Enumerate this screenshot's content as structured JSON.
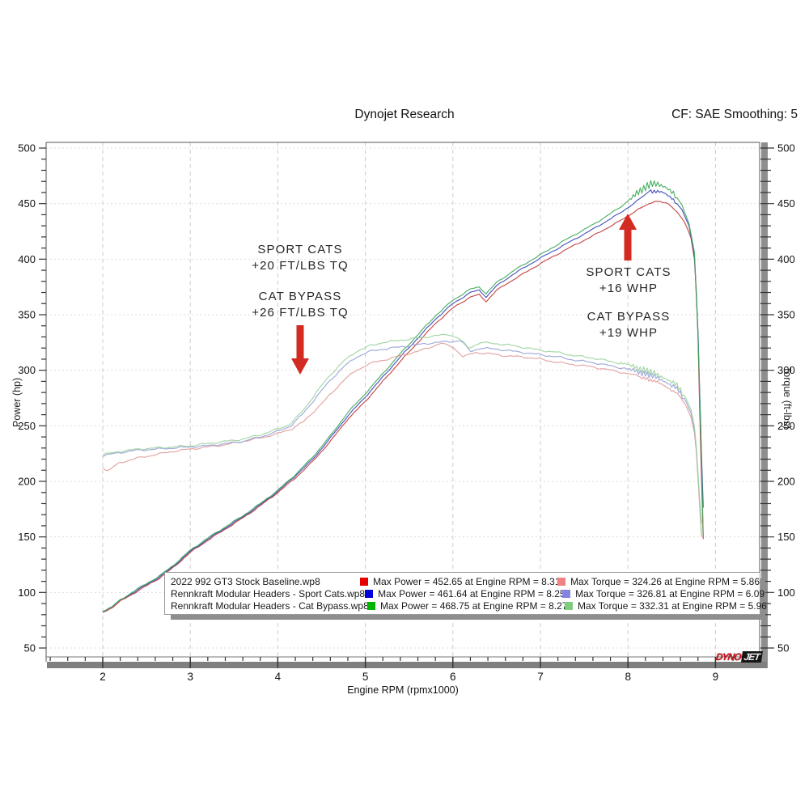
{
  "header": {
    "title": "Dynojet Research",
    "cf_label": "CF: SAE Smoothing: 5"
  },
  "annotations": {
    "left_top": {
      "line1": "SPORT CATS",
      "line2": "+20 FT/LBS TQ"
    },
    "left_bottom": {
      "line1": "CAT BYPASS",
      "line2": "+26 FT/LBS TQ"
    },
    "right_top": {
      "line1": "SPORT CATS",
      "line2": "+16 WHP"
    },
    "right_bottom": {
      "line1": "CAT BYPASS",
      "line2": "+19 WHP"
    },
    "arrow_color": "#d32a22"
  },
  "legend": {
    "rows": [
      {
        "file": "2022 992 GT3 Stock Baseline.wp8",
        "power": "Max Power = 452.65 at Engine RPM = 8.31",
        "torque": "Max Torque = 324.26 at Engine RPM = 5.86",
        "power_color": "#e60000",
        "torque_color": "#ef8383"
      },
      {
        "file": "Rennkraft Modular Headers - Sport Cats.wp8",
        "power": "Max Power = 461.64 at Engine RPM = 8.25",
        "torque": "Max Torque = 326.81 at Engine RPM = 6.09",
        "power_color": "#0000dd",
        "torque_color": "#8383e0"
      },
      {
        "file": "Rennkraft Modular Headers - Cat Bypass.wp8",
        "power": "Max Power = 468.75 at Engine RPM = 8.27",
        "torque": "Max Torque = 332.31 at Engine RPM = 5.96",
        "power_color": "#00b400",
        "torque_color": "#7fcc7f"
      }
    ]
  },
  "logo": {
    "brand_left": "DYNO",
    "brand_right": "JET"
  },
  "chart_data": {
    "type": "line",
    "title": "Dynojet Research",
    "xlabel": "Engine RPM (rpmx1000)",
    "ylabel_left": "Power (hp)",
    "ylabel_right": "Torque (ft-lbs)",
    "x_range": [
      1.35,
      9.52
    ],
    "y_range": [
      41,
      505
    ],
    "x_ticks": [
      2,
      3,
      4,
      5,
      6,
      7,
      8,
      9
    ],
    "y_ticks": [
      50,
      100,
      150,
      200,
      250,
      300,
      350,
      400,
      450,
      500
    ],
    "x_minor_step": 0.2,
    "y_minor_step": 10,
    "grid": true,
    "legend_position": "bottom",
    "series": [
      {
        "key": "power-stock",
        "name": "2022 992 GT3 Stock Baseline.wp8 Power",
        "axis": "power",
        "color": "#c23b3b",
        "noise": 0.6,
        "zigzag": null,
        "max": {
          "value": 452.65,
          "rpm": 8.31
        },
        "points": [
          [
            2,
            82
          ],
          [
            2.1,
            86
          ],
          [
            2.2,
            92
          ],
          [
            2.35,
            99
          ],
          [
            2.5,
            106
          ],
          [
            2.65,
            113
          ],
          [
            2.8,
            122
          ],
          [
            3,
            136
          ],
          [
            3.2,
            147
          ],
          [
            3.4,
            157
          ],
          [
            3.6,
            167
          ],
          [
            3.8,
            178
          ],
          [
            4,
            190
          ],
          [
            4.2,
            203
          ],
          [
            4.4,
            218
          ],
          [
            4.6,
            236
          ],
          [
            4.8,
            256
          ],
          [
            5,
            272
          ],
          [
            5.2,
            290
          ],
          [
            5.4,
            308
          ],
          [
            5.6,
            325
          ],
          [
            5.8,
            342
          ],
          [
            6,
            356
          ],
          [
            6.2,
            366
          ],
          [
            6.3,
            368
          ],
          [
            6.38,
            362
          ],
          [
            6.5,
            372
          ],
          [
            6.7,
            382
          ],
          [
            7,
            396
          ],
          [
            7.3,
            409
          ],
          [
            7.6,
            421
          ],
          [
            7.9,
            434
          ],
          [
            8.1,
            444
          ],
          [
            8.31,
            452.6
          ],
          [
            8.45,
            450
          ],
          [
            8.55,
            444
          ],
          [
            8.65,
            433
          ],
          [
            8.72,
            419
          ],
          [
            8.77,
            395
          ],
          [
            8.8,
            330
          ],
          [
            8.83,
            230
          ],
          [
            8.86,
            148
          ]
        ]
      },
      {
        "key": "power-sport-cats",
        "name": "Rennkraft Modular Headers - Sport Cats.wp8 Power",
        "axis": "power",
        "color": "#3b49b8",
        "noise": 0.6,
        "zigzag": {
          "from": 8.25,
          "to": 8.55,
          "amp": 1.6,
          "freq": 150
        },
        "max": {
          "value": 461.64,
          "rpm": 8.25
        },
        "points": [
          [
            2,
            83
          ],
          [
            2.1,
            87
          ],
          [
            2.2,
            93
          ],
          [
            2.35,
            100
          ],
          [
            2.5,
            107
          ],
          [
            2.65,
            114
          ],
          [
            2.8,
            123
          ],
          [
            3,
            137
          ],
          [
            3.2,
            148
          ],
          [
            3.4,
            158
          ],
          [
            3.6,
            168
          ],
          [
            3.8,
            179
          ],
          [
            4,
            191
          ],
          [
            4.2,
            205
          ],
          [
            4.4,
            220
          ],
          [
            4.6,
            239
          ],
          [
            4.8,
            259
          ],
          [
            5,
            276
          ],
          [
            5.2,
            294
          ],
          [
            5.4,
            312
          ],
          [
            5.6,
            329
          ],
          [
            5.8,
            346
          ],
          [
            6,
            360
          ],
          [
            6.2,
            370
          ],
          [
            6.3,
            372
          ],
          [
            6.38,
            366
          ],
          [
            6.5,
            376
          ],
          [
            6.7,
            387
          ],
          [
            7,
            401
          ],
          [
            7.3,
            414
          ],
          [
            7.6,
            427
          ],
          [
            7.9,
            441
          ],
          [
            8.1,
            452
          ],
          [
            8.25,
            461.6
          ],
          [
            8.4,
            460
          ],
          [
            8.52,
            454
          ],
          [
            8.62,
            444
          ],
          [
            8.7,
            429
          ],
          [
            8.76,
            403
          ],
          [
            8.8,
            335
          ],
          [
            8.84,
            225
          ],
          [
            8.87,
            152
          ]
        ]
      },
      {
        "key": "power-cat-bypass",
        "name": "Rennkraft Modular Headers - Cat Bypass.wp8 Power",
        "axis": "power",
        "color": "#3fa85a",
        "noise": 0.6,
        "zigzag": {
          "from": 8.0,
          "to": 8.55,
          "amp": 3.2,
          "freq": 150
        },
        "max": {
          "value": 468.75,
          "rpm": 8.27
        },
        "points": [
          [
            2,
            83
          ],
          [
            2.1,
            87
          ],
          [
            2.2,
            93
          ],
          [
            2.35,
            101
          ],
          [
            2.5,
            108
          ],
          [
            2.65,
            115
          ],
          [
            2.8,
            124
          ],
          [
            3,
            138
          ],
          [
            3.2,
            149
          ],
          [
            3.4,
            159
          ],
          [
            3.6,
            169
          ],
          [
            3.8,
            180
          ],
          [
            4,
            192
          ],
          [
            4.2,
            206
          ],
          [
            4.4,
            222
          ],
          [
            4.6,
            241
          ],
          [
            4.8,
            262
          ],
          [
            5,
            279
          ],
          [
            5.2,
            297
          ],
          [
            5.4,
            315
          ],
          [
            5.6,
            332
          ],
          [
            5.8,
            349
          ],
          [
            6,
            363
          ],
          [
            6.2,
            373
          ],
          [
            6.3,
            375
          ],
          [
            6.38,
            369
          ],
          [
            6.5,
            379
          ],
          [
            6.7,
            390
          ],
          [
            7,
            404
          ],
          [
            7.3,
            418
          ],
          [
            7.6,
            431
          ],
          [
            7.9,
            446
          ],
          [
            8.1,
            459
          ],
          [
            8.27,
            468.8
          ],
          [
            8.42,
            465
          ],
          [
            8.52,
            460
          ],
          [
            8.62,
            448
          ],
          [
            8.7,
            431
          ],
          [
            8.76,
            406
          ],
          [
            8.8,
            332
          ],
          [
            8.84,
            222
          ],
          [
            8.86,
            150
          ]
        ]
      },
      {
        "key": "torque-stock",
        "name": "2022 992 GT3 Stock Baseline.wp8 Torque",
        "axis": "torque",
        "color": "#e29b9b",
        "noise": 0.9,
        "zigzag": {
          "from": 8.15,
          "to": 8.55,
          "amp": 1.2,
          "freq": 150
        },
        "max": {
          "value": 324.26,
          "rpm": 5.86
        },
        "points": [
          [
            2,
            213
          ],
          [
            2.05,
            209
          ],
          [
            2.2,
            217
          ],
          [
            2.4,
            221
          ],
          [
            2.6,
            224
          ],
          [
            2.8,
            227
          ],
          [
            3,
            229
          ],
          [
            3.2,
            231
          ],
          [
            3.4,
            233
          ],
          [
            3.6,
            236
          ],
          [
            3.8,
            239
          ],
          [
            4,
            243
          ],
          [
            4.15,
            247
          ],
          [
            4.3,
            254
          ],
          [
            4.45,
            266
          ],
          [
            4.6,
            278
          ],
          [
            4.75,
            291
          ],
          [
            4.9,
            300
          ],
          [
            5.05,
            306
          ],
          [
            5.2,
            309
          ],
          [
            5.4,
            313
          ],
          [
            5.6,
            317
          ],
          [
            5.75,
            321
          ],
          [
            5.86,
            324.3
          ],
          [
            6,
            321
          ],
          [
            6.12,
            312
          ],
          [
            6.25,
            316
          ],
          [
            6.4,
            315
          ],
          [
            6.6,
            313
          ],
          [
            6.8,
            312
          ],
          [
            7,
            310
          ],
          [
            7.2,
            307
          ],
          [
            7.4,
            305
          ],
          [
            7.6,
            303
          ],
          [
            7.8,
            300
          ],
          [
            8,
            297
          ],
          [
            8.2,
            293
          ],
          [
            8.4,
            287
          ],
          [
            8.55,
            280
          ],
          [
            8.65,
            270
          ],
          [
            8.72,
            258
          ],
          [
            8.77,
            240
          ],
          [
            8.81,
            190
          ],
          [
            8.84,
            150
          ]
        ]
      },
      {
        "key": "torque-sport-cats",
        "name": "Rennkraft Modular Headers - Sport Cats.wp8 Torque",
        "axis": "torque",
        "color": "#97a3d8",
        "noise": 0.9,
        "zigzag": {
          "from": 7.95,
          "to": 8.62,
          "amp": 2.4,
          "freq": 150
        },
        "max": {
          "value": 326.81,
          "rpm": 6.09
        },
        "points": [
          [
            2,
            223
          ],
          [
            2.2,
            226
          ],
          [
            2.4,
            228
          ],
          [
            2.6,
            229
          ],
          [
            2.8,
            230
          ],
          [
            3,
            231
          ],
          [
            3.2,
            232
          ],
          [
            3.4,
            234
          ],
          [
            3.6,
            236
          ],
          [
            3.8,
            240
          ],
          [
            4,
            245
          ],
          [
            4.15,
            250
          ],
          [
            4.3,
            262
          ],
          [
            4.45,
            277
          ],
          [
            4.6,
            291
          ],
          [
            4.75,
            303
          ],
          [
            4.9,
            312
          ],
          [
            5.05,
            317
          ],
          [
            5.2,
            319
          ],
          [
            5.4,
            321
          ],
          [
            5.6,
            323
          ],
          [
            5.8,
            325
          ],
          [
            6,
            326
          ],
          [
            6.09,
            326.8
          ],
          [
            6.2,
            317
          ],
          [
            6.32,
            320
          ],
          [
            6.5,
            319
          ],
          [
            6.7,
            317
          ],
          [
            7,
            314
          ],
          [
            7.2,
            312
          ],
          [
            7.4,
            309
          ],
          [
            7.6,
            307
          ],
          [
            7.8,
            304
          ],
          [
            8,
            301
          ],
          [
            8.2,
            297
          ],
          [
            8.4,
            291
          ],
          [
            8.55,
            284
          ],
          [
            8.65,
            274
          ],
          [
            8.72,
            262
          ],
          [
            8.77,
            243
          ],
          [
            8.81,
            193
          ],
          [
            8.85,
            152
          ]
        ]
      },
      {
        "key": "torque-cat-bypass",
        "name": "Rennkraft Modular Headers - Cat Bypass.wp8 Torque",
        "axis": "torque",
        "color": "#9cd3a0",
        "noise": 0.9,
        "zigzag": {
          "from": 7.9,
          "to": 8.62,
          "amp": 2.6,
          "freq": 150
        },
        "max": {
          "value": 332.31,
          "rpm": 5.96
        },
        "points": [
          [
            2,
            224
          ],
          [
            2.2,
            227
          ],
          [
            2.4,
            229
          ],
          [
            2.6,
            230
          ],
          [
            2.8,
            231
          ],
          [
            3,
            232
          ],
          [
            3.2,
            234
          ],
          [
            3.4,
            236
          ],
          [
            3.6,
            238
          ],
          [
            3.8,
            242
          ],
          [
            4,
            247
          ],
          [
            4.15,
            252
          ],
          [
            4.3,
            265
          ],
          [
            4.45,
            281
          ],
          [
            4.6,
            296
          ],
          [
            4.75,
            308
          ],
          [
            4.9,
            317
          ],
          [
            5.05,
            322
          ],
          [
            5.2,
            325
          ],
          [
            5.4,
            327
          ],
          [
            5.6,
            329
          ],
          [
            5.8,
            331
          ],
          [
            5.96,
            332.3
          ],
          [
            6.08,
            328
          ],
          [
            6.18,
            320
          ],
          [
            6.32,
            325
          ],
          [
            6.5,
            324
          ],
          [
            6.7,
            322
          ],
          [
            7,
            318
          ],
          [
            7.2,
            316
          ],
          [
            7.4,
            313
          ],
          [
            7.6,
            311
          ],
          [
            7.8,
            308
          ],
          [
            8,
            305
          ],
          [
            8.2,
            300
          ],
          [
            8.4,
            294
          ],
          [
            8.55,
            287
          ],
          [
            8.65,
            277
          ],
          [
            8.72,
            265
          ],
          [
            8.77,
            245
          ],
          [
            8.81,
            195
          ],
          [
            8.84,
            153
          ]
        ]
      }
    ]
  }
}
